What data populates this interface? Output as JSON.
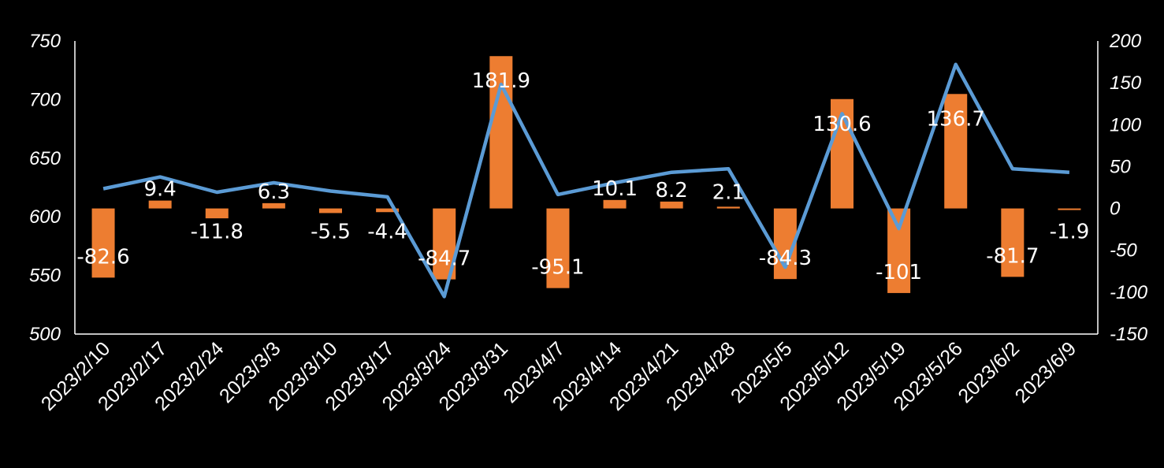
{
  "chart_data": {
    "type": "bar+line",
    "title": "",
    "xlabel": "",
    "ylabel_left": "",
    "ylabel_right": "",
    "grid": false,
    "legend": "none",
    "categories": [
      "2023/2/10",
      "2023/2/17",
      "2023/2/24",
      "2023/3/3",
      "2023/3/10",
      "2023/3/17",
      "2023/3/24",
      "2023/3/31",
      "2023/4/7",
      "2023/4/14",
      "2023/4/21",
      "2023/4/28",
      "2023/5/5",
      "2023/5/12",
      "2023/5/19",
      "2023/5/26",
      "2023/6/2",
      "2023/6/9"
    ],
    "left_axis": {
      "min": 500,
      "max": 750,
      "ticks": [
        500,
        550,
        600,
        650,
        700,
        750
      ]
    },
    "right_axis": {
      "min": -150,
      "max": 200,
      "ticks": [
        -150,
        -100,
        -50,
        0,
        50,
        100,
        150,
        200
      ]
    },
    "series": [
      {
        "type": "bar",
        "axis": "right",
        "color": "#ED7D31",
        "values": [
          -82.6,
          9.4,
          -11.8,
          6.3,
          -5.5,
          -4.4,
          -84.7,
          181.9,
          -95.1,
          10.1,
          8.2,
          2.1,
          -84.3,
          130.6,
          -101,
          136.7,
          -81.7,
          -1.9
        ],
        "labels": [
          "-82.6",
          "9.4",
          "-11.8",
          "6.3",
          "-5.5",
          "-4.4",
          "-84.7",
          "181.9",
          "-95.1",
          "10.1",
          "8.2",
          "2.1",
          "-84.3",
          "130.6",
          "-101",
          "136.7",
          "-81.7",
          "-1.9"
        ]
      },
      {
        "type": "line",
        "axis": "left",
        "color": "#5B9BD5",
        "values": [
          624,
          634,
          621,
          629,
          622,
          617,
          532,
          713,
          619,
          629,
          638,
          641,
          557,
          688,
          590,
          730,
          641,
          638
        ]
      }
    ]
  }
}
